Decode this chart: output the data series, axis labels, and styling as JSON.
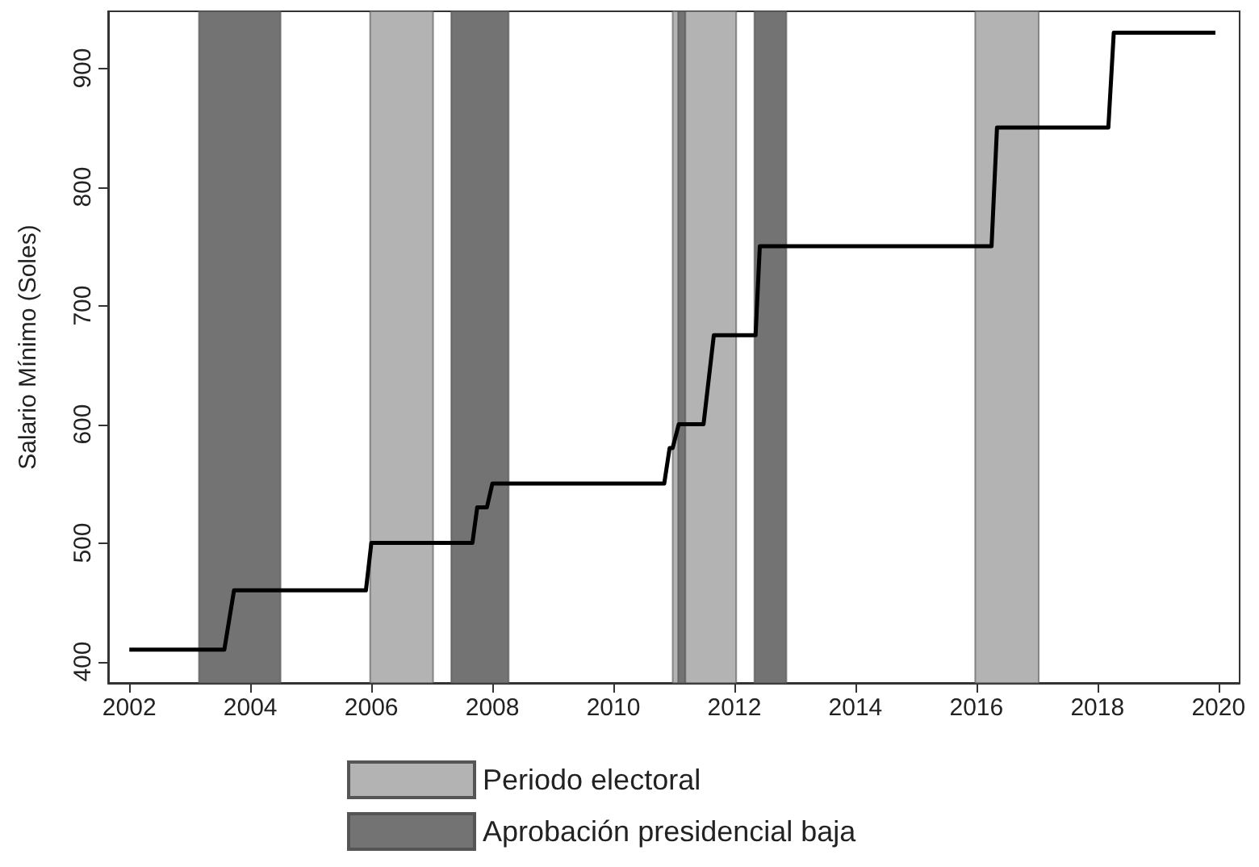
{
  "chart_data": {
    "type": "line",
    "ylabel": "Salario Mínimo (Soles)",
    "x": [
      2002,
      2003.57,
      2003.73,
      2005.91,
      2006.0,
      2007.67,
      2007.75,
      2007.91,
      2008.0,
      2010.84,
      2010.93,
      2010.98,
      2011.08,
      2011.49,
      2011.66,
      2012.35,
      2012.42,
      2016.25,
      2016.34,
      2018.18,
      2018.27,
      2019.95
    ],
    "series": [
      {
        "color": "#000000",
        "values": [
          410,
          410,
          460,
          460,
          500,
          500,
          530,
          530,
          550,
          550,
          580,
          580,
          600,
          600,
          675,
          675,
          750,
          750,
          850,
          850,
          930,
          930
        ]
      }
    ],
    "xlim": [
      2001.65,
      2020.35
    ],
    "xticks": [
      2002,
      2004,
      2006,
      2008,
      2010,
      2012,
      2014,
      2016,
      2018,
      2020
    ],
    "ylim": [
      382,
      948
    ],
    "yticks": [
      400,
      500,
      600,
      700,
      800,
      900
    ],
    "bands": [
      {
        "axis": "x",
        "from": 2005.98,
        "to": 2007.02,
        "label": "Periodo electoral",
        "color": "#b3b3b3"
      },
      {
        "axis": "x",
        "from": 2010.98,
        "to": 2012.03,
        "color": "#b3b3b3"
      },
      {
        "axis": "x",
        "from": 2015.98,
        "to": 2017.03,
        "color": "#b3b3b3"
      },
      {
        "axis": "x",
        "from": 2003.15,
        "to": 2004.5,
        "label": "Aprobación presidencial baja",
        "color": "#737373"
      },
      {
        "axis": "x",
        "from": 2007.32,
        "to": 2008.27,
        "color": "#737373"
      },
      {
        "axis": "x",
        "from": 2011.07,
        "to": 2011.19,
        "color": "#737373"
      },
      {
        "axis": "x",
        "from": 2012.33,
        "to": 2012.86,
        "color": "#737373"
      }
    ],
    "grid": false,
    "legend": "bottom",
    "marker": "none",
    "line_style": "solid"
  }
}
